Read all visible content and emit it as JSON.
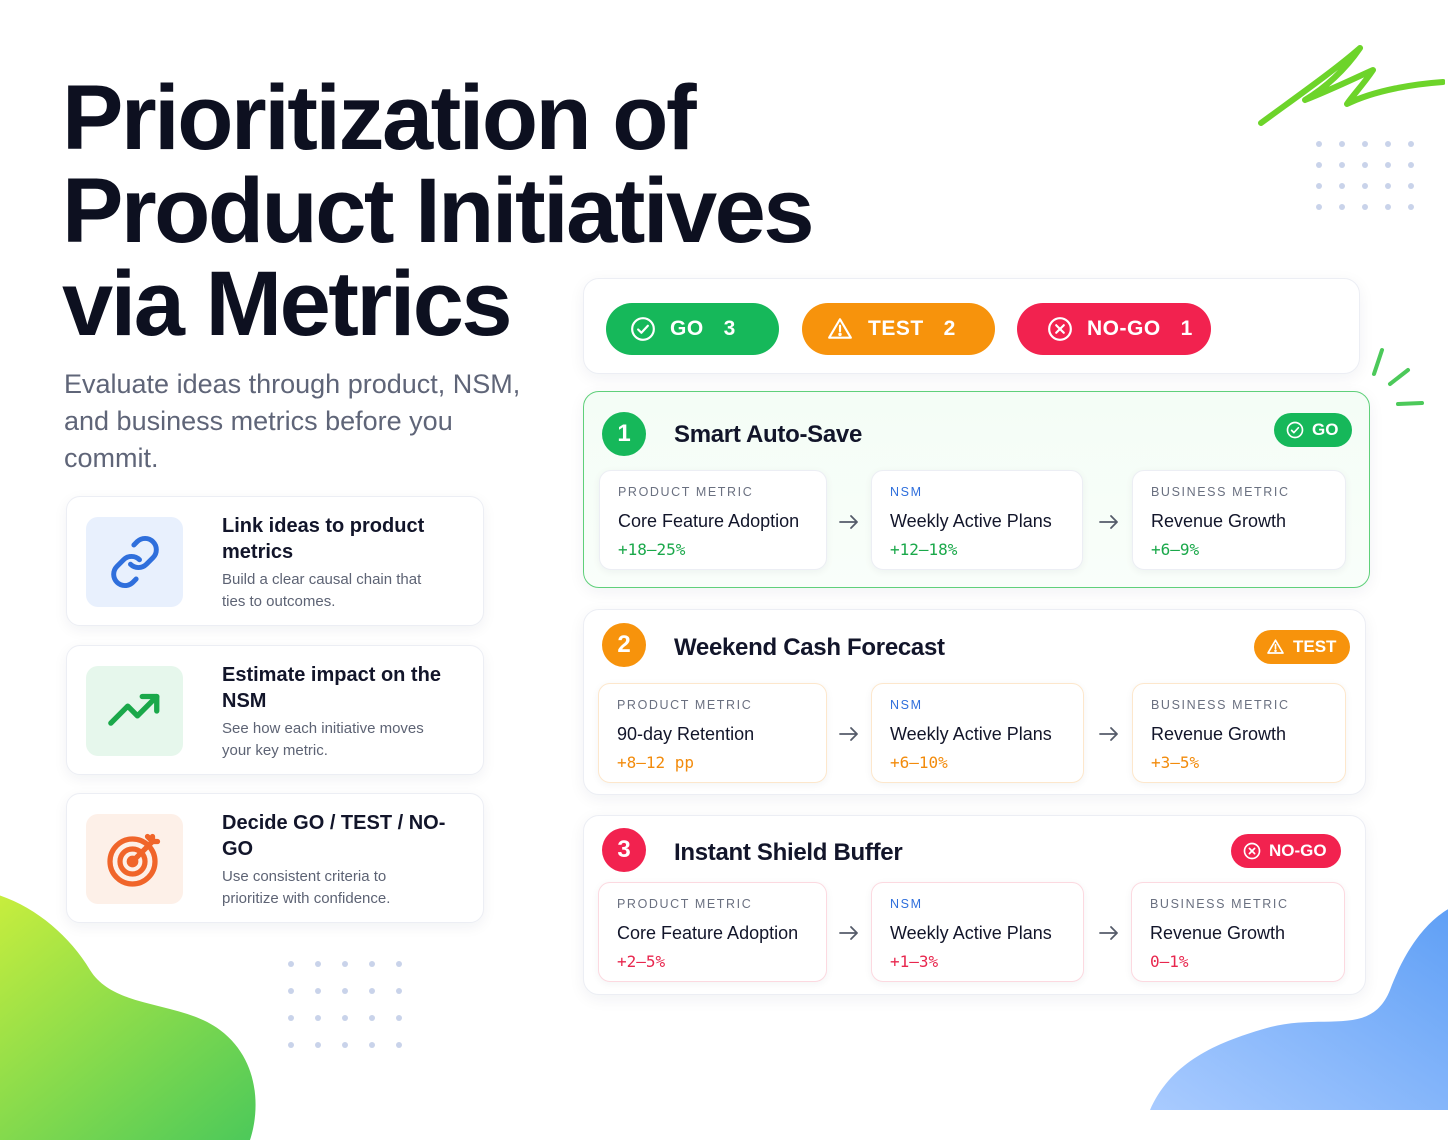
{
  "title_lines": [
    "Prioritization of",
    "Product Initiatives",
    "via Metrics"
  ],
  "subtitle": "Evaluate ideas through product, NSM, and business metrics before you commit.",
  "features": [
    {
      "icon": "link-icon",
      "icon_color": "#2f6fdc",
      "bg": "#e8f0fd",
      "heading": "Link ideas to product metrics",
      "description": "Build a clear causal chain that ties to outcomes."
    },
    {
      "icon": "trending-up-icon",
      "icon_color": "#1aa84a",
      "bg": "#e6f7ec",
      "heading": "Estimate impact on the NSM",
      "description": "See how each initiative moves your key metric."
    },
    {
      "icon": "target-icon",
      "icon_color": "#f0652a",
      "bg": "#fdf0e8",
      "heading": "Decide GO / TEST / NO-GO",
      "description": "Use consistent criteria to prioritize with confidence."
    }
  ],
  "summary": {
    "go": {
      "label": "GO",
      "count": "3",
      "color": "#16b85a"
    },
    "test": {
      "label": "TEST",
      "count": "2",
      "color": "#f7930c"
    },
    "nogo": {
      "label": "NO-GO",
      "count": "1",
      "color": "#f2224f"
    }
  },
  "initiatives": [
    {
      "number": "1",
      "name": "Smart Auto-Save",
      "status": "GO",
      "color": "#16b85a",
      "metrics": [
        {
          "type": "PRODUCT METRIC",
          "name": "Core Feature Adoption",
          "value": "+18–25%"
        },
        {
          "type": "NSM",
          "name": "Weekly Active Plans",
          "value": "+12–18%"
        },
        {
          "type": "BUSINESS METRIC",
          "name": "Revenue Growth",
          "value": "+6–9%"
        }
      ]
    },
    {
      "number": "2",
      "name": "Weekend Cash Forecast",
      "status": "TEST",
      "color": "#f7930c",
      "metrics": [
        {
          "type": "PRODUCT METRIC",
          "name": "90-day Retention",
          "value": "+8–12 pp"
        },
        {
          "type": "NSM",
          "name": "Weekly Active Plans",
          "value": "+6–10%"
        },
        {
          "type": "BUSINESS METRIC",
          "name": "Revenue Growth",
          "value": "+3–5%"
        }
      ]
    },
    {
      "number": "3",
      "name": "Instant Shield Buffer",
      "status": "NO-GO",
      "color": "#f2224f",
      "metrics": [
        {
          "type": "PRODUCT METRIC",
          "name": "Core Feature Adoption",
          "value": "+2–5%"
        },
        {
          "type": "NSM",
          "name": "Weekly Active Plans",
          "value": "+1–3%"
        },
        {
          "type": "BUSINESS METRIC",
          "name": "Revenue Growth",
          "value": "0–1%"
        }
      ]
    }
  ]
}
